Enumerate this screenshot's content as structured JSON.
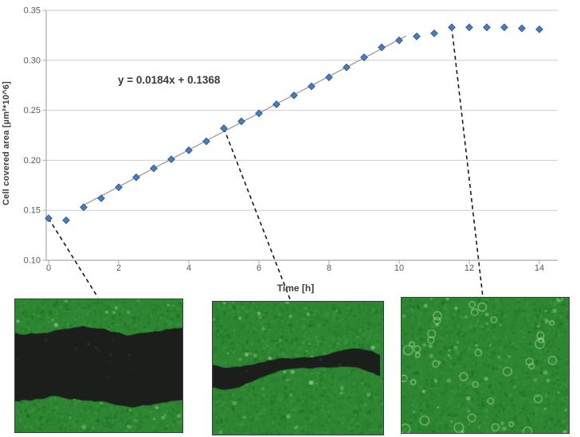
{
  "chart_data": {
    "type": "scatter",
    "title": "",
    "xlabel": "Time [h]",
    "ylabel": "Cell covered area [µm²*10^6]",
    "annotation": "y = 0.0184x + 0.1368",
    "xlim": [
      0,
      14
    ],
    "ylim": [
      0.1,
      0.35
    ],
    "x_ticks": [
      "0",
      "2",
      "4",
      "6",
      "8",
      "10",
      "12",
      "14"
    ],
    "y_ticks": [
      "0.10",
      "0.15",
      "0.20",
      "0.25",
      "0.30",
      "0.35"
    ],
    "grid": "horizontal-only",
    "legend": "none",
    "marker": {
      "shape": "diamond",
      "color": "#4a7ebb",
      "edge": "#2f5e96"
    },
    "trendline": {
      "slope": 0.0184,
      "intercept": 0.1368,
      "x_start": 1.0,
      "x_end": 10.2,
      "color": "#9c9c9c"
    },
    "series": [
      {
        "name": "Cell covered area",
        "x": [
          0,
          0.5,
          1,
          1.5,
          2,
          2.5,
          3,
          3.5,
          4,
          4.5,
          5,
          5.5,
          6,
          6.5,
          7,
          7.5,
          8,
          8.5,
          9,
          9.5,
          10,
          10.5,
          11,
          11.5,
          12,
          12.5,
          13,
          13.5,
          14
        ],
        "y": [
          0.142,
          0.14,
          0.153,
          0.162,
          0.173,
          0.183,
          0.192,
          0.201,
          0.21,
          0.219,
          0.232,
          0.239,
          0.247,
          0.256,
          0.265,
          0.274,
          0.283,
          0.293,
          0.303,
          0.313,
          0.32,
          0.324,
          0.327,
          0.333,
          0.333,
          0.333,
          0.333,
          0.332,
          0.331
        ]
      }
    ],
    "callouts": [
      {
        "t": 0,
        "v": 0.142,
        "panel": 0,
        "anchor_frac": 0.5
      },
      {
        "t": 5,
        "v": 0.232,
        "panel": 1,
        "anchor_frac": 0.46
      },
      {
        "t": 11.5,
        "v": 0.333,
        "panel": 2,
        "anchor_frac": 0.49
      }
    ]
  },
  "colors": {
    "grid": "#cdcdcd",
    "axis": "#ababab",
    "tick_text": "#595959",
    "callout_line": "#1a1a1a",
    "cell_green": "#2e8632",
    "scratch_black": "#1c1e1c"
  },
  "micrographs": {
    "panels": [
      {
        "name": "micrograph-open-scratch",
        "scratch": "wide"
      },
      {
        "name": "micrograph-partially-closed-scratch",
        "scratch": "narrow"
      },
      {
        "name": "micrograph-closed-monolayer",
        "scratch": "none"
      }
    ]
  }
}
